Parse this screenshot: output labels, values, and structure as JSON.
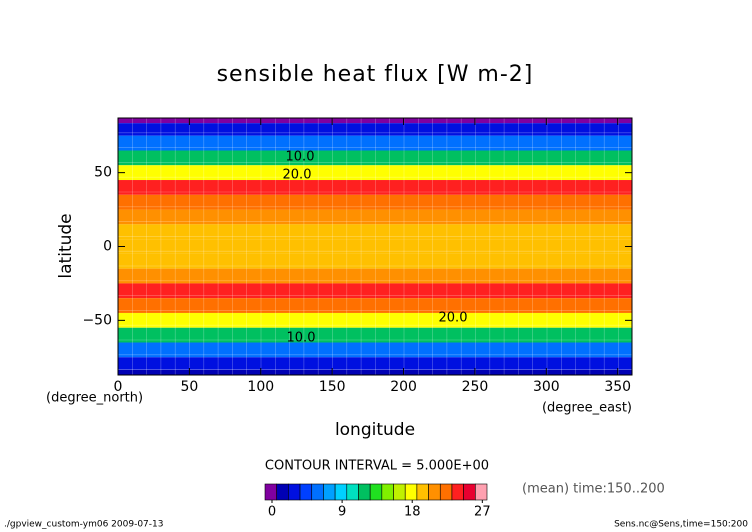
{
  "chart_data": {
    "type": "contour",
    "title": "sensible heat flux [W m-2]",
    "xlabel": "longitude",
    "ylabel": "latitude",
    "xunit": "(degree_east)",
    "yunit": "(degree_north)",
    "xlim": [
      0,
      360
    ],
    "ylim": [
      -87,
      87
    ],
    "xticks": [
      0,
      50,
      100,
      150,
      200,
      250,
      300,
      350
    ],
    "yticks": [
      {
        "value": -50,
        "label": "−50"
      },
      0,
      50
    ],
    "y": [
      87,
      80,
      70,
      60,
      50,
      40,
      30,
      20,
      10,
      0,
      -10,
      -20,
      -30,
      -40,
      -50,
      -60,
      -70,
      -80,
      -87
    ],
    "values": [
      0,
      3,
      6,
      12,
      18,
      24,
      22,
      21,
      20,
      20,
      20,
      21,
      24,
      22,
      18,
      12,
      6,
      3,
      2
    ],
    "contour_labels": [
      "10.0",
      "20.0",
      "20.0",
      "10.0"
    ],
    "contour_interval": "CONTOUR INTERVAL = 5.000E+00",
    "time_note": "(mean) time:150..200",
    "clim": [
      -0.9,
      27.6
    ],
    "colors": [
      "#8000a0",
      "#0000b4",
      "#0010e0",
      "#0040ff",
      "#0070ff",
      "#00a0ff",
      "#00d0ff",
      "#00e0c0",
      "#00c060",
      "#20e020",
      "#80f000",
      "#c0f000",
      "#ffff00",
      "#ffc000",
      "#ff9000",
      "#ff7000",
      "#ff2020",
      "#e80030",
      "#ffa0b0"
    ],
    "cticks": [
      0,
      9,
      18,
      27
    ],
    "footer_left": "./gpview_custom-ym06  2009-07-13",
    "footer_right": "Sens.nc@Sens,time=150:200"
  }
}
